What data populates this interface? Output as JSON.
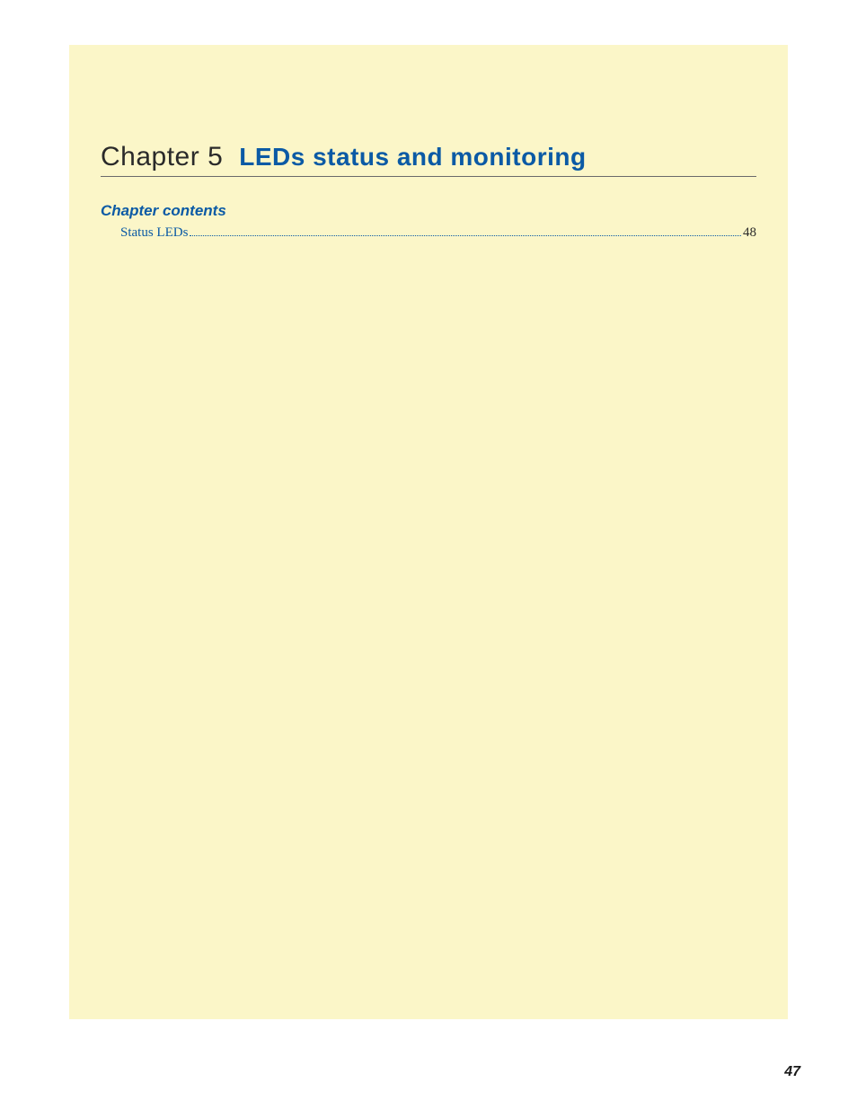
{
  "colors": {
    "page_background": "#fbf6c8",
    "body_background": "#ffffff",
    "heading_blue": "#0b5aa5",
    "rule_gray": "#6a6a6a",
    "text_dark": "#2a2a2a",
    "link_blue": "#0b5aa5"
  },
  "chapter": {
    "label": "Chapter 5",
    "title": "LEDs status and monitoring"
  },
  "contents_heading": "Chapter contents",
  "toc": [
    {
      "label": "Status LEDs",
      "page": "48"
    }
  ],
  "page_number": "47"
}
